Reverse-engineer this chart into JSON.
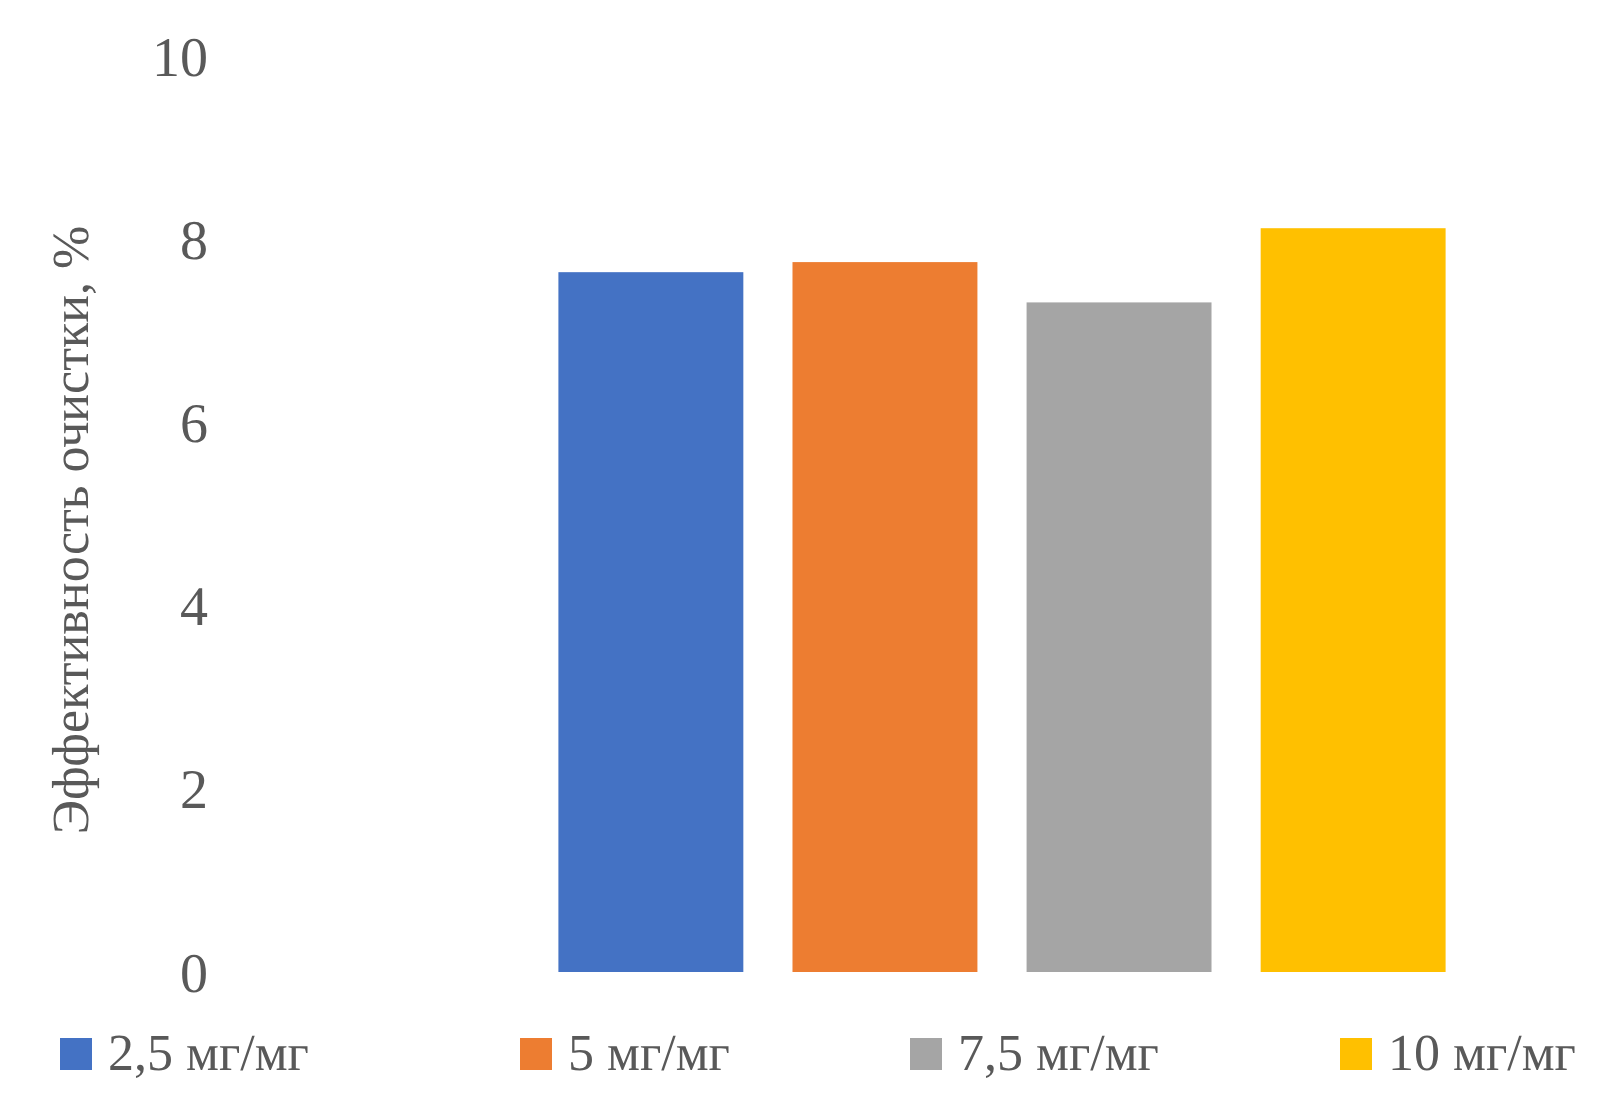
{
  "chart_data": {
    "type": "bar",
    "ylabel": "Эффективность очистки, %",
    "categories": [
      null
    ],
    "series": [
      {
        "name": "2,5 мг/мг",
        "color": "#4472c4",
        "values": [
          7.64
        ]
      },
      {
        "name": "5 мг/мг",
        "color": "#ed7d31",
        "values": [
          7.75
        ]
      },
      {
        "name": "7,5 мг/мг",
        "color": "#a5a5a5",
        "values": [
          7.31
        ]
      },
      {
        "name": "10 мг/мг",
        "color": "#ffc000",
        "values": [
          8.12
        ]
      }
    ],
    "ylim": [
      0,
      10
    ],
    "yticks": [
      0,
      2,
      4,
      6,
      8,
      10
    ],
    "grid": false,
    "legend": "bottom"
  }
}
